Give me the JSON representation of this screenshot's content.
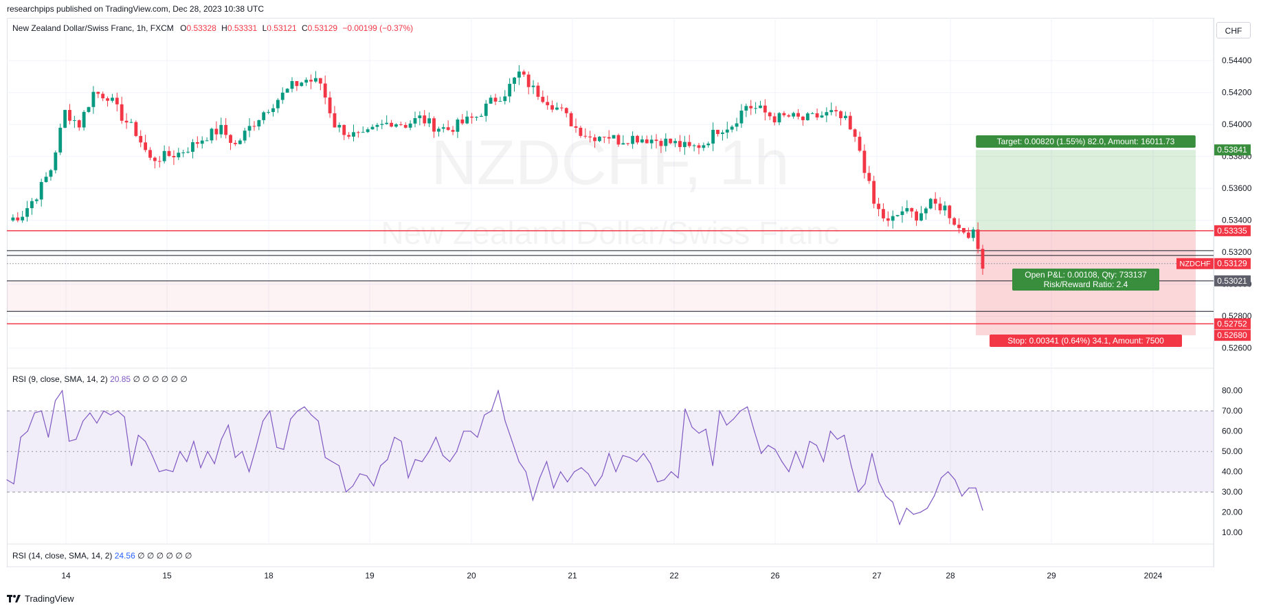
{
  "publish_line": "researchpips published on TradingView.com, Dec 28, 2023 10:38 UTC",
  "brand": "TradingView",
  "currency_button": "CHF",
  "legend": {
    "title": "New Zealand Dollar/Swiss Franc, 1h, FXCM",
    "o_label": "O",
    "o": "0.53328",
    "h_label": "H",
    "h": "0.53331",
    "l_label": "L",
    "l": "0.53121",
    "c_label": "C",
    "c": "0.53129",
    "change": "−0.00199 (−0.37%)"
  },
  "watermark": {
    "symbol": "NZDCHF, 1h",
    "name": "New Zealand Dollar/Swiss Franc"
  },
  "colors": {
    "up": "#089981",
    "down": "#f23645",
    "rsi_line": "#7e57c2",
    "profit": "#4caf50",
    "loss": "#f23645"
  },
  "rsi1": {
    "label": "RSI (9, close, SMA, 14, 2)",
    "value": "20.85",
    "zeros": "∅ ∅ ∅ ∅ ∅ ∅"
  },
  "rsi2": {
    "label": "RSI (14, close, SMA, 14, 2)",
    "value": "24.56",
    "zeros": "∅ ∅ ∅ ∅ ∅ ∅"
  },
  "position": {
    "target_label": "Target: 0.00820 (1.55%) 82.0, Amount: 16011.73",
    "stop_label": "Stop: 0.00341 (0.64%) 34.1, Amount: 7500",
    "pnl_line1": "Open P&L: 0.00108, Qty: 733137",
    "pnl_line2": "Risk/Reward Ratio: 2.4",
    "entry": 0.53335,
    "target": 0.53841,
    "stop": 0.5268
  },
  "price_tags": [
    {
      "text": "0.53841",
      "price": 0.53841,
      "color": "#388e3c"
    },
    {
      "text": "0.53335",
      "price": 0.53335,
      "color": "#f23645"
    },
    {
      "text": "0.53129",
      "price": 0.53129,
      "color": "#f23645",
      "prefix": "NZDCHF"
    },
    {
      "text": "0.53021",
      "price": 0.53021,
      "color": "#5d606b"
    },
    {
      "text": "0.52752",
      "price": 0.52752,
      "color": "#f23645"
    },
    {
      "text": "0.52680",
      "price": 0.5268,
      "color": "#f23645"
    }
  ],
  "chart_data": [
    {
      "type": "candlestick",
      "title": "New Zealand Dollar/Swiss Franc, 1h, FXCM",
      "price_axis": {
        "ticks": [
          0.544,
          0.542,
          0.54,
          0.538,
          0.536,
          0.534,
          0.532,
          0.53,
          0.528,
          0.526
        ],
        "tick_labels": [
          "0.54400",
          "0.54200",
          "0.54000",
          "0.53800",
          "0.53600",
          "0.53400",
          "0.53200",
          "0.53000",
          "0.52800",
          "0.52600"
        ],
        "range": [
          0.525,
          0.5453
        ]
      },
      "time_axis": {
        "labels": [
          "14",
          "15",
          "18",
          "19",
          "20",
          "21",
          "22",
          "26",
          "27",
          "28",
          "29",
          "2024"
        ]
      },
      "horizontal_lines": [
        {
          "price": 0.53335,
          "color": "#f23645"
        },
        {
          "price": 0.5321,
          "color": "#131722"
        },
        {
          "price": 0.5318,
          "color": "#131722"
        },
        {
          "price": 0.53129,
          "color": "#9598a1",
          "style": "dotted"
        },
        {
          "price": 0.53021,
          "color": "#131722"
        },
        {
          "price": 0.5283,
          "color": "#131722"
        },
        {
          "price": 0.52752,
          "color": "#f23645"
        }
      ],
      "close_path": [
        [
          0,
          0.534
        ],
        [
          3,
          0.5344
        ],
        [
          6,
          0.5356
        ],
        [
          9,
          0.5372
        ],
        [
          12,
          0.5408
        ],
        [
          15,
          0.54
        ],
        [
          18,
          0.542
        ],
        [
          21,
          0.5418
        ],
        [
          24,
          0.5405
        ],
        [
          27,
          0.5395
        ],
        [
          30,
          0.5378
        ],
        [
          33,
          0.538
        ],
        [
          36,
          0.5382
        ],
        [
          39,
          0.5387
        ],
        [
          42,
          0.5393
        ],
        [
          45,
          0.5397
        ],
        [
          48,
          0.5387
        ],
        [
          51,
          0.5398
        ],
        [
          54,
          0.5408
        ],
        [
          57,
          0.5416
        ],
        [
          60,
          0.5424
        ],
        [
          63,
          0.5428
        ],
        [
          66,
          0.5426
        ],
        [
          69,
          0.54
        ],
        [
          72,
          0.5394
        ],
        [
          75,
          0.5392
        ],
        [
          78,
          0.5398
        ],
        [
          81,
          0.5402
        ],
        [
          84,
          0.54
        ],
        [
          87,
          0.5404
        ],
        [
          90,
          0.5399
        ],
        [
          93,
          0.5397
        ],
        [
          96,
          0.5401
        ],
        [
          99,
          0.5405
        ],
        [
          102,
          0.5414
        ],
        [
          105,
          0.542
        ],
        [
          108,
          0.5432
        ],
        [
          111,
          0.5422
        ],
        [
          114,
          0.5415
        ],
        [
          117,
          0.5408
        ],
        [
          120,
          0.5398
        ],
        [
          123,
          0.5392
        ],
        [
          126,
          0.5394
        ],
        [
          129,
          0.539
        ],
        [
          132,
          0.5392
        ],
        [
          135,
          0.5391
        ],
        [
          138,
          0.539
        ],
        [
          141,
          0.5388
        ],
        [
          144,
          0.5385
        ],
        [
          147,
          0.5388
        ],
        [
          150,
          0.5397
        ],
        [
          153,
          0.54
        ],
        [
          156,
          0.5412
        ],
        [
          159,
          0.5409
        ],
        [
          162,
          0.5404
        ],
        [
          165,
          0.5405
        ],
        [
          168,
          0.5403
        ],
        [
          171,
          0.5405
        ],
        [
          174,
          0.5407
        ],
        [
          177,
          0.5402
        ],
        [
          180,
          0.5384
        ],
        [
          183,
          0.535
        ],
        [
          186,
          0.5338
        ],
        [
          189,
          0.5346
        ],
        [
          192,
          0.5343
        ],
        [
          195,
          0.535
        ],
        [
          198,
          0.5348
        ],
        [
          201,
          0.5335
        ],
        [
          204,
          0.5331
        ],
        [
          206,
          0.5313
        ]
      ]
    },
    {
      "type": "line",
      "title": "RSI (9, close, SMA, 14, 2)",
      "y_axis": {
        "ticks": [
          80,
          70,
          60,
          50,
          40,
          30,
          20,
          10
        ],
        "tick_labels": [
          "80.00",
          "70.00",
          "60.00",
          "50.00",
          "40.00",
          "30.00",
          "20.00",
          "10.00"
        ],
        "range": [
          5,
          87
        ]
      },
      "bands": {
        "upper": 70,
        "middle": 50,
        "lower": 30
      },
      "series": [
        {
          "values": [
            36,
            34,
            57,
            60,
            69,
            70,
            57,
            75,
            80,
            55,
            56,
            65,
            69,
            64,
            70,
            68,
            70,
            67,
            43,
            58,
            55,
            48,
            40,
            41,
            40,
            50,
            45,
            55,
            42,
            50,
            44,
            56,
            63,
            47,
            50,
            40,
            52,
            65,
            70,
            52,
            51,
            66,
            70,
            72,
            68,
            65,
            47,
            45,
            43,
            30,
            33,
            39,
            38,
            33,
            43,
            46,
            57,
            55,
            37,
            46,
            45,
            50,
            57,
            48,
            45,
            50,
            60,
            60,
            57,
            68,
            70,
            80,
            65,
            55,
            45,
            40,
            26,
            37,
            45,
            32,
            40,
            35,
            40,
            42,
            39,
            33,
            38,
            49,
            40,
            48,
            47,
            45,
            49,
            44,
            35,
            36,
            40,
            37,
            71,
            62,
            59,
            61,
            43,
            70,
            63,
            66,
            70,
            72,
            60,
            49,
            53,
            51,
            45,
            40,
            50,
            42,
            55,
            53,
            45,
            60,
            56,
            58,
            43,
            30,
            34,
            49,
            35,
            28,
            25,
            14,
            22,
            19,
            20,
            22,
            28,
            37,
            40,
            36,
            28,
            32,
            32,
            21
          ]
        }
      ]
    }
  ]
}
